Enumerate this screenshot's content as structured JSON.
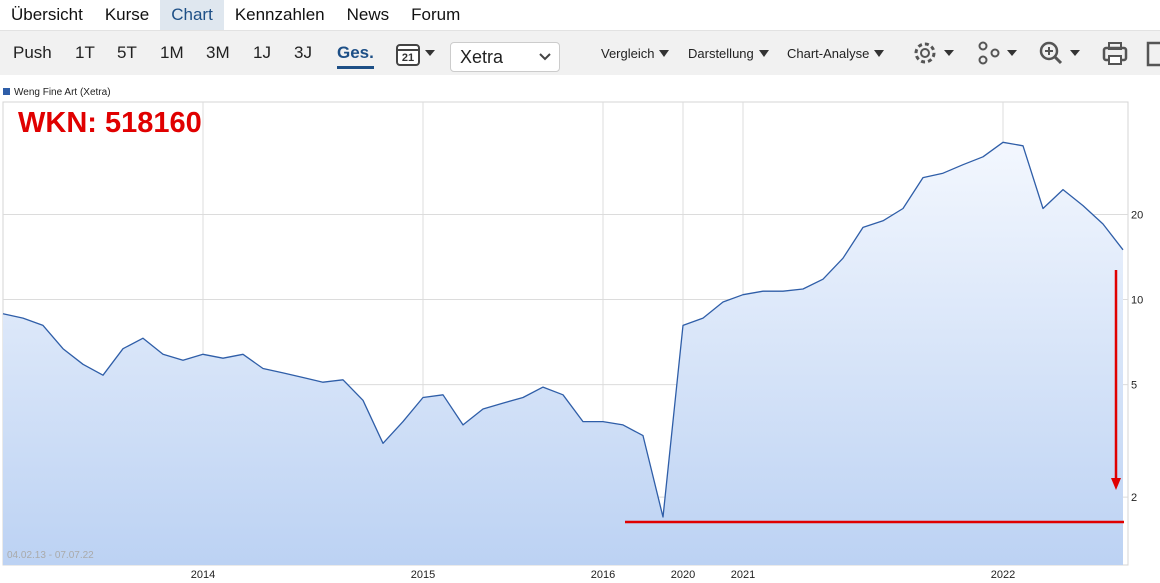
{
  "nav": {
    "tabs": [
      "Übersicht",
      "Kurse",
      "Chart",
      "Kennzahlen",
      "News",
      "Forum"
    ]
  },
  "toolbar": {
    "periods": [
      "Push",
      "1T",
      "5T",
      "1M",
      "3M",
      "1J",
      "3J",
      "Ges."
    ],
    "calendar_day": "21",
    "exchange": "Xetra",
    "menus": [
      "Vergleich",
      "Darstellung",
      "Chart-Analyse"
    ]
  },
  "chart_data": {
    "type": "line",
    "annotation": "WKN: 518160",
    "date_range": "04.02.13 - 07.07.22",
    "categories": [
      null,
      null,
      null,
      null,
      null,
      null,
      null,
      null,
      null,
      null,
      "2014",
      null,
      null,
      null,
      null,
      null,
      null,
      null,
      null,
      null,
      null,
      "2015",
      null,
      null,
      null,
      null,
      null,
      null,
      null,
      null,
      "2016",
      null,
      null,
      null,
      "2020",
      null,
      null,
      "2021",
      null,
      null,
      null,
      null,
      null,
      null,
      null,
      null,
      null,
      null,
      null,
      null,
      "2022",
      null,
      null,
      null,
      null,
      null,
      null
    ],
    "series": [
      {
        "name": "Weng Fine Art (Xetra)",
        "color": "#2f5ea8",
        "values": [
          8.9,
          8.6,
          8.1,
          6.7,
          5.9,
          5.4,
          6.7,
          7.3,
          6.4,
          6.1,
          6.4,
          6.2,
          6.4,
          5.7,
          5.5,
          5.3,
          5.1,
          5.2,
          4.4,
          3.1,
          3.7,
          4.5,
          4.6,
          3.6,
          4.1,
          4.3,
          4.5,
          4.9,
          4.6,
          3.7,
          3.7,
          3.6,
          3.3,
          1.7,
          8.1,
          8.6,
          9.8,
          10.4,
          10.7,
          10.7,
          10.9,
          11.8,
          14,
          18,
          19,
          21,
          27,
          28,
          30,
          32,
          36,
          35,
          21,
          24.5,
          21.5,
          18.5,
          15
        ]
      }
    ],
    "ylim": [
      1.15,
      50
    ],
    "yticks": [
      2,
      5,
      10,
      20
    ],
    "log_scale": true,
    "grid": true
  }
}
